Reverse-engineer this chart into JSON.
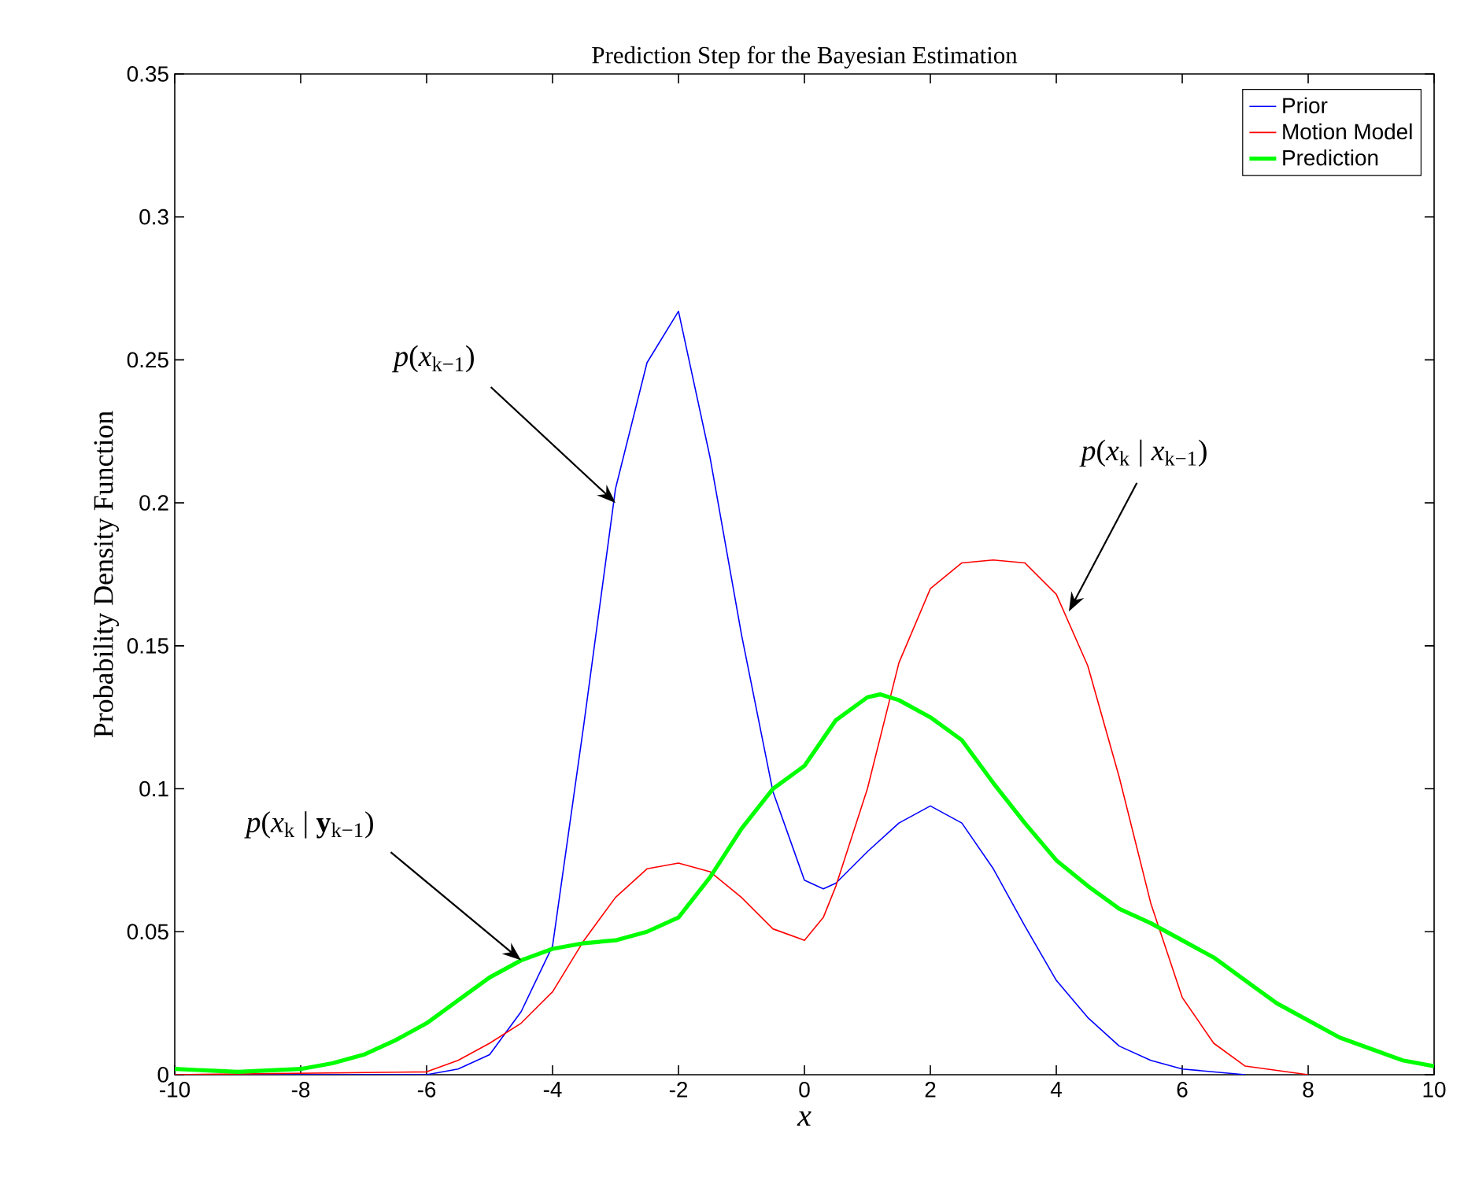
{
  "chart_data": {
    "type": "line",
    "title": "Prediction Step for the Bayesian Estimation",
    "xlabel": "*x*",
    "ylabel": "Probability Density Function",
    "xlim": [
      -10,
      10
    ],
    "ylim": [
      0,
      0.35
    ],
    "xticks": [
      -10,
      -8,
      -6,
      -4,
      -2,
      0,
      2,
      4,
      6,
      8,
      10
    ],
    "yticks": [
      0,
      0.05,
      0.1,
      0.15,
      0.2,
      0.25,
      0.3,
      0.35
    ],
    "legend": "top right",
    "grid": false,
    "marker": "none",
    "line_style": "solid",
    "series": [
      {
        "name": "Prior",
        "color": "#0000ff",
        "x": [
          -10,
          -6,
          -5.5,
          -5,
          -4.5,
          -4,
          -3.5,
          -3,
          -2.5,
          -2,
          -1.5,
          -1,
          -0.5,
          0,
          0.3,
          0.5,
          1,
          1.5,
          2,
          2.5,
          3,
          3.5,
          4,
          4.5,
          5,
          5.5,
          6,
          7
        ],
        "values": [
          0,
          0,
          0.002,
          0.007,
          0.022,
          0.045,
          0.123,
          0.205,
          0.249,
          0.267,
          0.216,
          0.154,
          0.099,
          0.068,
          0.065,
          0.067,
          0.078,
          0.088,
          0.094,
          0.088,
          0.072,
          0.052,
          0.033,
          0.02,
          0.01,
          0.005,
          0.002,
          0
        ]
      },
      {
        "name": "Motion Model",
        "color": "#ff0000",
        "x": [
          -10,
          -6,
          -5.5,
          -5,
          -4.5,
          -4,
          -3.5,
          -3,
          -2.5,
          -2,
          -1.5,
          -1,
          -0.5,
          0,
          0.3,
          0.5,
          1,
          1.5,
          2,
          2.5,
          3,
          3.5,
          4,
          4.5,
          5,
          5.5,
          6,
          6.5,
          7,
          8
        ],
        "values": [
          0,
          0.001,
          0.005,
          0.011,
          0.018,
          0.029,
          0.047,
          0.062,
          0.072,
          0.074,
          0.071,
          0.062,
          0.051,
          0.047,
          0.055,
          0.066,
          0.1,
          0.144,
          0.17,
          0.179,
          0.18,
          0.179,
          0.168,
          0.143,
          0.104,
          0.06,
          0.027,
          0.011,
          0.003,
          0
        ]
      },
      {
        "name": "Prediction",
        "color": "#00ff00",
        "x": [
          -10,
          -9,
          -8,
          -7.5,
          -7,
          -6.5,
          -6,
          -5.5,
          -5,
          -4.5,
          -4,
          -3.5,
          -3,
          -2.5,
          -2,
          -1.5,
          -1,
          -0.5,
          0,
          0.5,
          1,
          1.2,
          1.5,
          2,
          2.5,
          3,
          3.5,
          4,
          4.5,
          5,
          5.5,
          6,
          6.5,
          7,
          7.5,
          8,
          8.5,
          9,
          9.5,
          10
        ],
        "values": [
          0.002,
          0.001,
          0.002,
          0.004,
          0.007,
          0.012,
          0.018,
          0.026,
          0.034,
          0.04,
          0.044,
          0.046,
          0.047,
          0.05,
          0.055,
          0.069,
          0.086,
          0.1,
          0.108,
          0.124,
          0.132,
          0.133,
          0.131,
          0.125,
          0.117,
          0.102,
          0.088,
          0.075,
          0.066,
          0.058,
          0.053,
          0.047,
          0.041,
          0.033,
          0.025,
          0.019,
          0.013,
          0.009,
          0.005,
          0.003
        ]
      }
    ],
    "annotations": [
      {
        "text": "*p*(*x*$_{k−1}$)",
        "x": -3,
        "y": 0.2
      },
      {
        "text": "*p*(*x*$_{k}$ | *x*$_{k−1}$)",
        "x": 4.2,
        "y": 0.162
      },
      {
        "text": "*p*(*x*$_{k}$ | **y**$_{k−1}$)",
        "x": -4.5,
        "y": 0.04
      }
    ]
  }
}
